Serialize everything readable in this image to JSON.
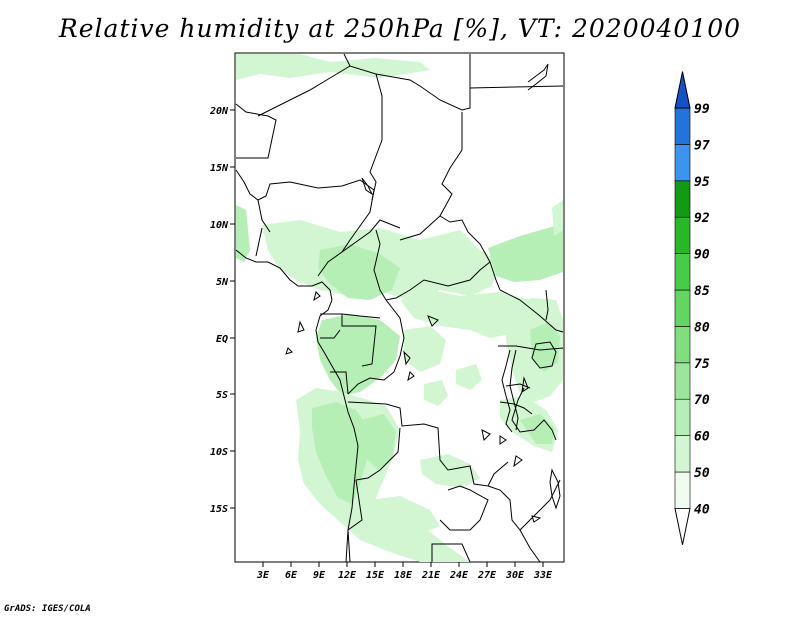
{
  "title": "Relative humidity at 250hPa [%], VT: 2020040100",
  "credit": "GrADS: IGES/COLA",
  "map": {
    "lon_range": [
      0,
      36
    ],
    "lat_range": [
      -20,
      25
    ],
    "lat_ticks": [
      "20N",
      "15N",
      "10N",
      "5N",
      "EQ",
      "5S",
      "10S",
      "15S"
    ],
    "lon_ticks": [
      "3E",
      "6E",
      "9E",
      "12E",
      "15E",
      "18E",
      "21E",
      "24E",
      "27E",
      "30E",
      "33E"
    ]
  },
  "colorbar": {
    "levels": [
      "40",
      "50",
      "60",
      "70",
      "75",
      "80",
      "85",
      "90",
      "92",
      "95",
      "97",
      "99"
    ],
    "colors": [
      "#f0fcf0",
      "#d2f6d2",
      "#b6efb6",
      "#9be69b",
      "#7fdf7f",
      "#62d562",
      "#47cc47",
      "#27b827",
      "#129a12",
      "#3b94ee",
      "#2273dd",
      "#1450c8",
      "#ffffff"
    ]
  }
}
